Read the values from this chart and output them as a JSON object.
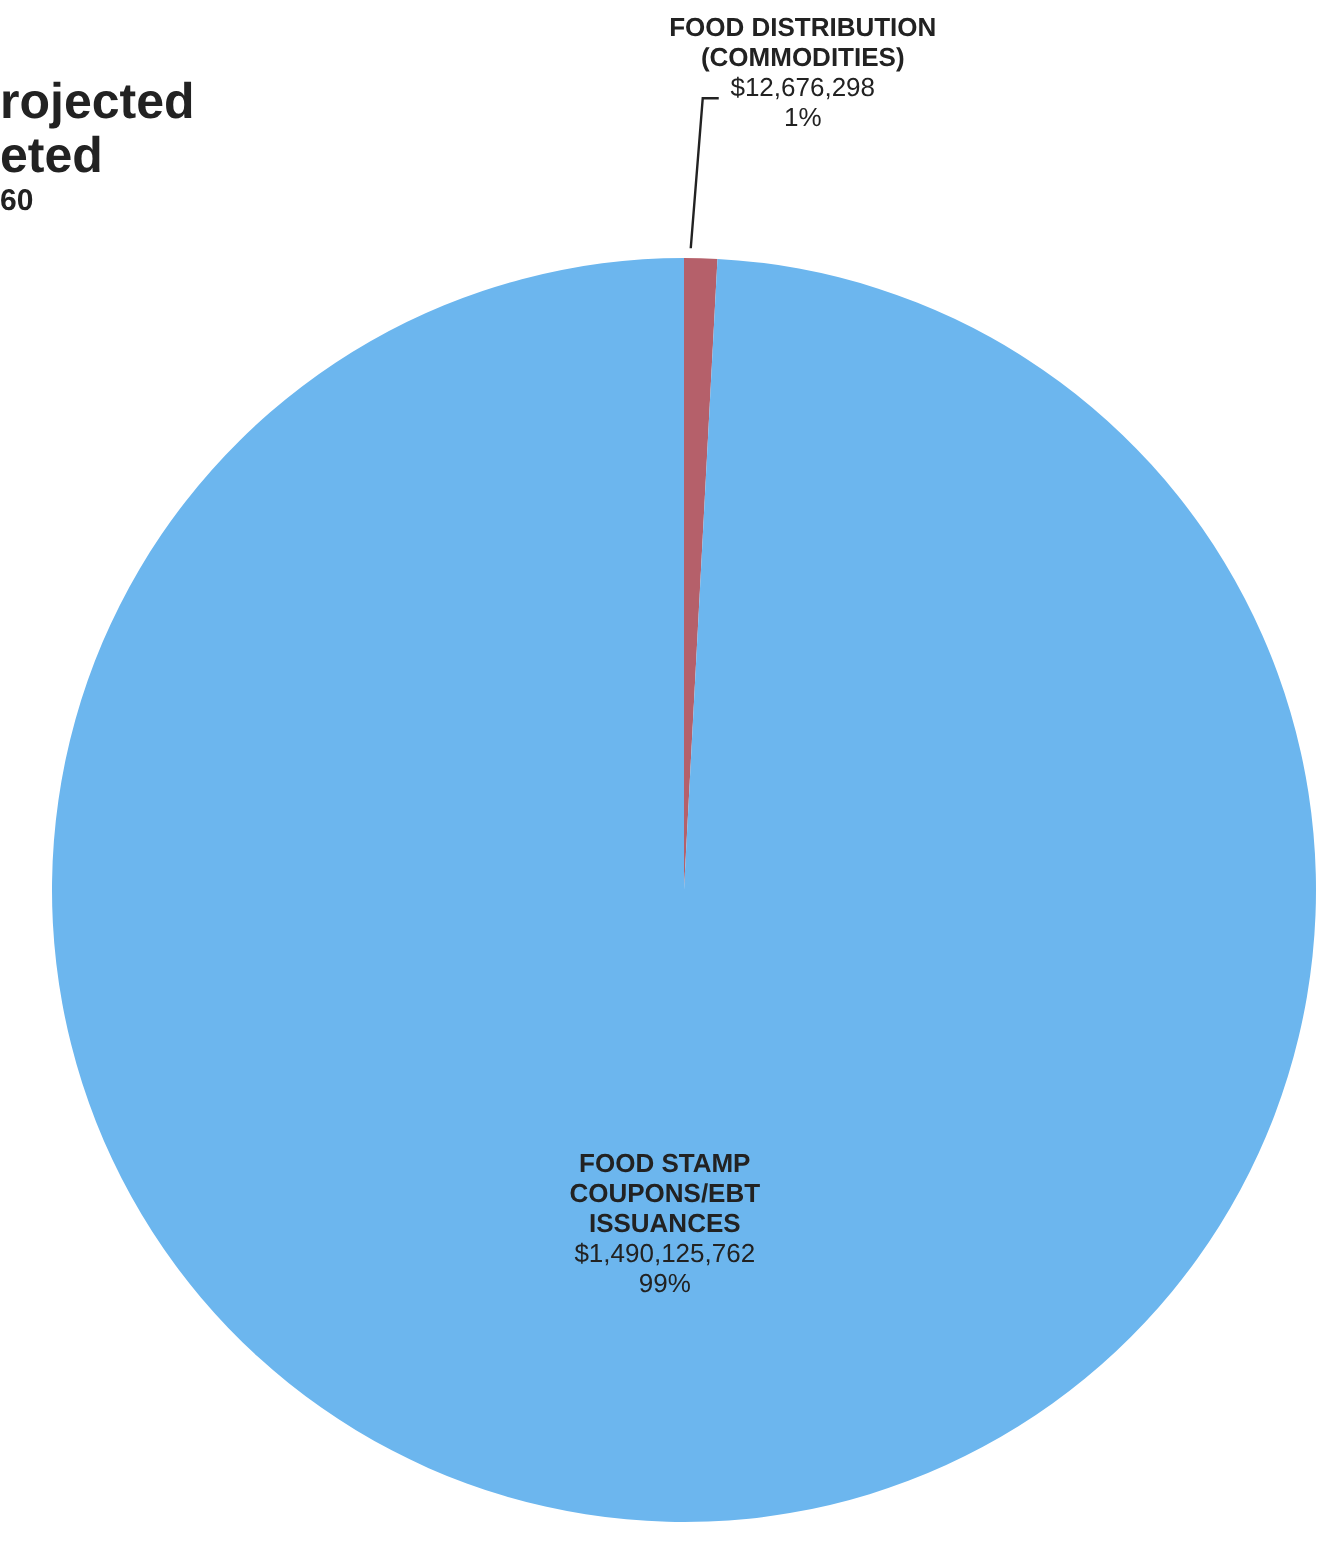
{
  "chart_data": {
    "type": "pie",
    "title": "rojected\neted",
    "subtitle": "60",
    "categories": [
      "FOOD DISTRIBUTION (COMMODITIES)",
      "FOOD STAMP COUPONS/EBT ISSUANCES"
    ],
    "values": [
      12676298,
      1490125762
    ],
    "colors": [
      "#b5606a",
      "#6cb6ee"
    ],
    "value_labels": [
      "$12,676,298\n1%",
      "$1,490,125,762\n99%"
    ]
  }
}
